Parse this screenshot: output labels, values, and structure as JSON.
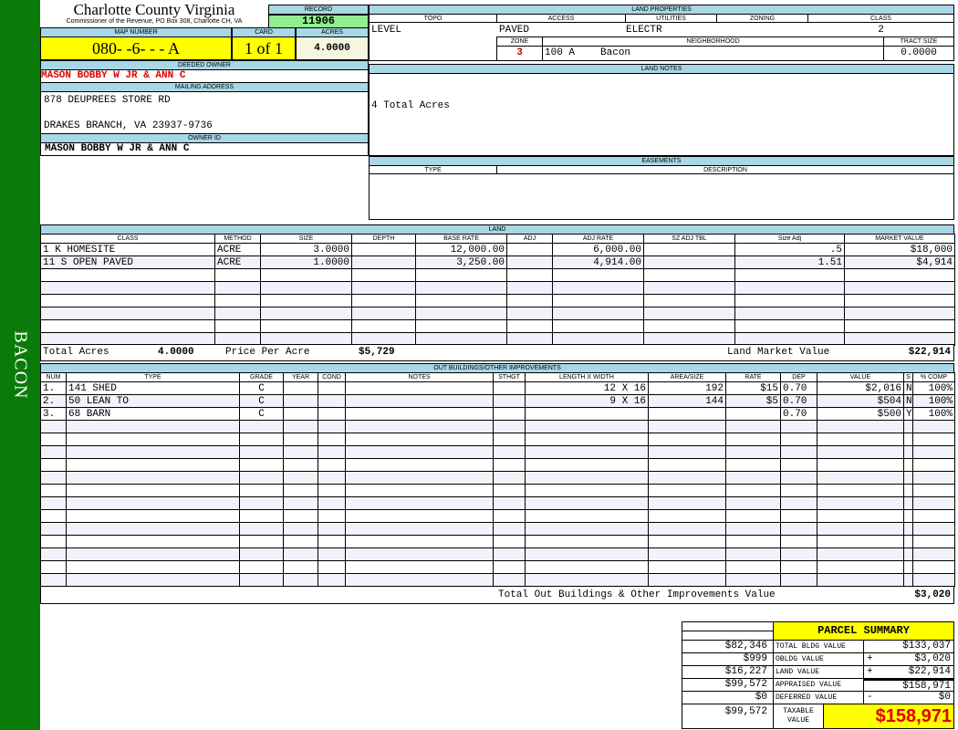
{
  "sidebar": {
    "label": "BACON"
  },
  "header": {
    "county": "Charlotte County Virginia",
    "office": "Commissioner of the Revenue, PO Box 308, Charlotte CH, VA",
    "record_label": "RECORD",
    "record": "11906",
    "map_label": "MAP NUMBER",
    "map_number": "080- -6- - - A",
    "card_label": "CARD",
    "card": "1 of 1",
    "acres_label": "ACRES",
    "acres": "4.0000"
  },
  "owner": {
    "deeded_label": "DEEDED OWNER",
    "deeded": "MASON BOBBY W JR & ANN C",
    "mailing_label": "MAILING ADDRESS",
    "address1": "878 DEUPREES STORE RD",
    "address2": "DRAKES BRANCH, VA 23937-9736",
    "owner_id_label": "OWNER ID",
    "owner_id": "MASON BOBBY W JR & ANN C"
  },
  "land_properties": {
    "title": "LAND PROPERTIES",
    "topo_label": "TOPO",
    "access_label": "ACCESS",
    "utilities_label": "UTILITIES",
    "zoning_label": "ZONING",
    "class_label": "CLASS",
    "topo": "LEVEL",
    "access": "PAVED",
    "utilities": "ELECTR",
    "class": "2",
    "zone_label": "ZONE",
    "neighborhood_label": "NEIGHBORHOOD",
    "tract_label": "TRACT SIZE",
    "zone": "3",
    "neighborhood_code": "100 A",
    "neighborhood": "Bacon",
    "tract": "0.0000"
  },
  "land_notes": {
    "title": "LAND NOTES",
    "text": "4 Total Acres"
  },
  "easements": {
    "title": "EASEMENTS",
    "type_label": "TYPE",
    "desc_label": "DESCRIPTION"
  },
  "land": {
    "title": "LAND",
    "columns": [
      "CLASS",
      "METHOD",
      "SIZE",
      "DEPTH",
      "BASE RATE",
      "ADJ",
      "ADJ RATE",
      "SZ ADJ TBL",
      "Size Adj",
      "MARKET VALUE"
    ],
    "rows": [
      [
        "1 K HOMESITE",
        "ACRE",
        "3.0000",
        "",
        "12,000.00",
        "",
        "6,000.00",
        "",
        ".5",
        "$18,000"
      ],
      [
        "11 S OPEN PAVED",
        "ACRE",
        "1.0000",
        "",
        "3,250.00",
        "",
        "4,914.00",
        "",
        "1.51",
        "$4,914"
      ]
    ],
    "total_acres_label": "Total Acres",
    "total_acres": "4.0000",
    "price_label": "Price Per Acre",
    "price": "$5,729",
    "market_label": "Land Market Value",
    "market": "$22,914"
  },
  "outbuildings": {
    "title": "OUT BUILDINGS/OTHER IMPROVEMENTS",
    "columns": [
      "NUM",
      "TYPE",
      "GRADE",
      "YEAR",
      "COND",
      "NOTES",
      "STHGT",
      "LENGTH X WIDTH",
      "AREA/SIZE",
      "RATE",
      "DEP",
      "VALUE",
      "S",
      "% COMP"
    ],
    "rows": [
      [
        "1.",
        "141  SHED",
        "C",
        "",
        "",
        "",
        "",
        "12 X 16",
        "192",
        "$15",
        "0.70",
        "$2,016",
        "N",
        "100%"
      ],
      [
        "2.",
        "50  LEAN TO",
        "C",
        "",
        "",
        "",
        "",
        "9 X 16",
        "144",
        "$5",
        "0.70",
        "$504",
        "N",
        "100%"
      ],
      [
        "3.",
        "68  BARN",
        "C",
        "",
        "",
        "",
        "",
        "",
        "",
        "",
        "0.70",
        "$500",
        "Y",
        "100%"
      ]
    ],
    "total_label": "Total Out Buildings & Other Improvements Value",
    "total": "$3,020"
  },
  "summary": {
    "title": "PARCEL SUMMARY",
    "rows": [
      {
        "left": "$82,346",
        "label": "TOTAL BLDG VALUE",
        "op": "",
        "value": "$133,037"
      },
      {
        "left": "$999",
        "label": "OBLDG VALUE",
        "op": "+",
        "value": "$3,020"
      },
      {
        "left": "$16,227",
        "label": "LAND VALUE",
        "op": "+",
        "value": "$22,914"
      },
      {
        "left": "$99,572",
        "label": "APPRAISED VALUE",
        "op": "",
        "value": "$158,971"
      },
      {
        "left": "$0",
        "label": "DEFERRED VALUE",
        "op": "-",
        "value": "$0"
      }
    ],
    "taxable_left": "$99,572",
    "taxable_label": "TAXABLE VALUE",
    "taxable": "$158,971"
  },
  "colors": {
    "sidebar": "#0a7a0a",
    "label_bg": "#a8d8e6",
    "highlight": "#ffff00",
    "record_bg": "#90ee90",
    "owner_text": "#e00000"
  }
}
